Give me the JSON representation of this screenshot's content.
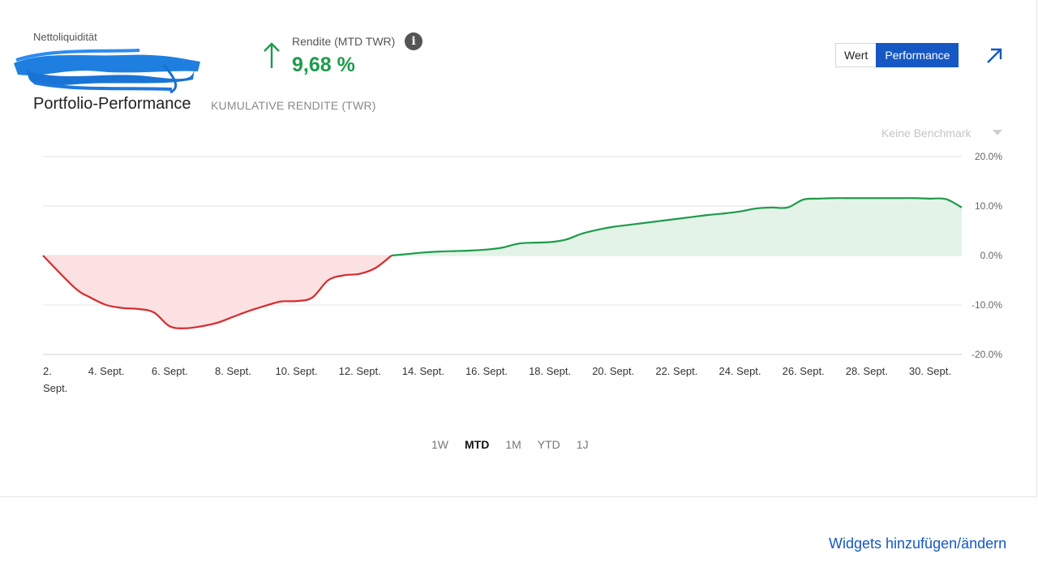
{
  "header": {
    "nettoliquiditaet_label": "Nettoliquidität",
    "rendite_label": "Rendite (MTD TWR)",
    "rendite_value": "9,68 %",
    "info_glyph": "i"
  },
  "widget": {
    "title": "Portfolio-Performance",
    "subtitle": "KUMULATIVE RENDITE (TWR)",
    "toggle": {
      "wert": "Wert",
      "performance": "Performance",
      "active": "performance"
    },
    "benchmark_label": "Keine Benchmark"
  },
  "ranges": [
    "1W",
    "MTD",
    "1M",
    "YTD",
    "1J"
  ],
  "active_range": "MTD",
  "footer": {
    "widgets_link": "Widgets hinzufügen/ändern"
  },
  "colors": {
    "positive": "#1e9b4b",
    "negative": "#d62b30",
    "positive_fill": "#e3f3e7",
    "negative_fill": "#fbe1e1",
    "accent": "#1558c4"
  },
  "chart_data": {
    "type": "area",
    "x_unit": "day of September",
    "x": [
      2,
      3,
      3.5,
      4,
      4.5,
      5,
      5.5,
      6,
      6.5,
      7,
      7.5,
      8,
      8.5,
      9,
      9.5,
      10,
      10.5,
      11,
      11.5,
      12,
      12.5,
      13,
      13.5,
      14,
      14.5,
      15,
      15.5,
      16,
      16.5,
      17,
      17.5,
      18,
      18.5,
      19,
      19.5,
      20,
      20.5,
      21,
      21.5,
      22,
      22.5,
      23,
      23.5,
      24,
      24.5,
      25,
      25.5,
      26,
      26.5,
      27,
      27.5,
      28,
      28.5,
      29,
      29.5,
      30,
      30.5,
      31
    ],
    "y": [
      0,
      -6.5,
      -8.5,
      -10,
      -10.6,
      -10.8,
      -11.5,
      -14.3,
      -14.7,
      -14.3,
      -13.6,
      -12.4,
      -11.2,
      -10.2,
      -9.3,
      -9.2,
      -8.5,
      -5,
      -4,
      -3.7,
      -2.5,
      0,
      0.3,
      0.6,
      0.8,
      0.9,
      1,
      1.2,
      1.6,
      2.4,
      2.6,
      2.7,
      3.2,
      4.4,
      5.2,
      5.8,
      6.2,
      6.6,
      7,
      7.4,
      7.8,
      8.2,
      8.5,
      8.9,
      9.5,
      9.7,
      9.7,
      11.3,
      11.5,
      11.6,
      11.6,
      11.6,
      11.6,
      11.6,
      11.6,
      11.5,
      11.4,
      9.7
    ],
    "ylim": [
      -20,
      20
    ],
    "yticks": [
      20,
      10,
      0,
      -10,
      -20
    ],
    "ytick_labels": [
      "20.0%",
      "10.0%",
      "0.0%",
      "-10.0%",
      "-20.0%"
    ],
    "xticks": [
      2,
      4,
      6,
      8,
      10,
      12,
      14,
      16,
      18,
      20,
      22,
      24,
      26,
      28,
      30
    ],
    "xtick_labels": [
      "2. Sept.",
      "4. Sept.",
      "6. Sept.",
      "8. Sept.",
      "10. Sept.",
      "12. Sept.",
      "14. Sept.",
      "16. Sept.",
      "18. Sept.",
      "20. Sept.",
      "22. Sept.",
      "24. Sept.",
      "26. Sept.",
      "28. Sept.",
      "30. Sept."
    ],
    "grid": true,
    "legend": "none"
  }
}
